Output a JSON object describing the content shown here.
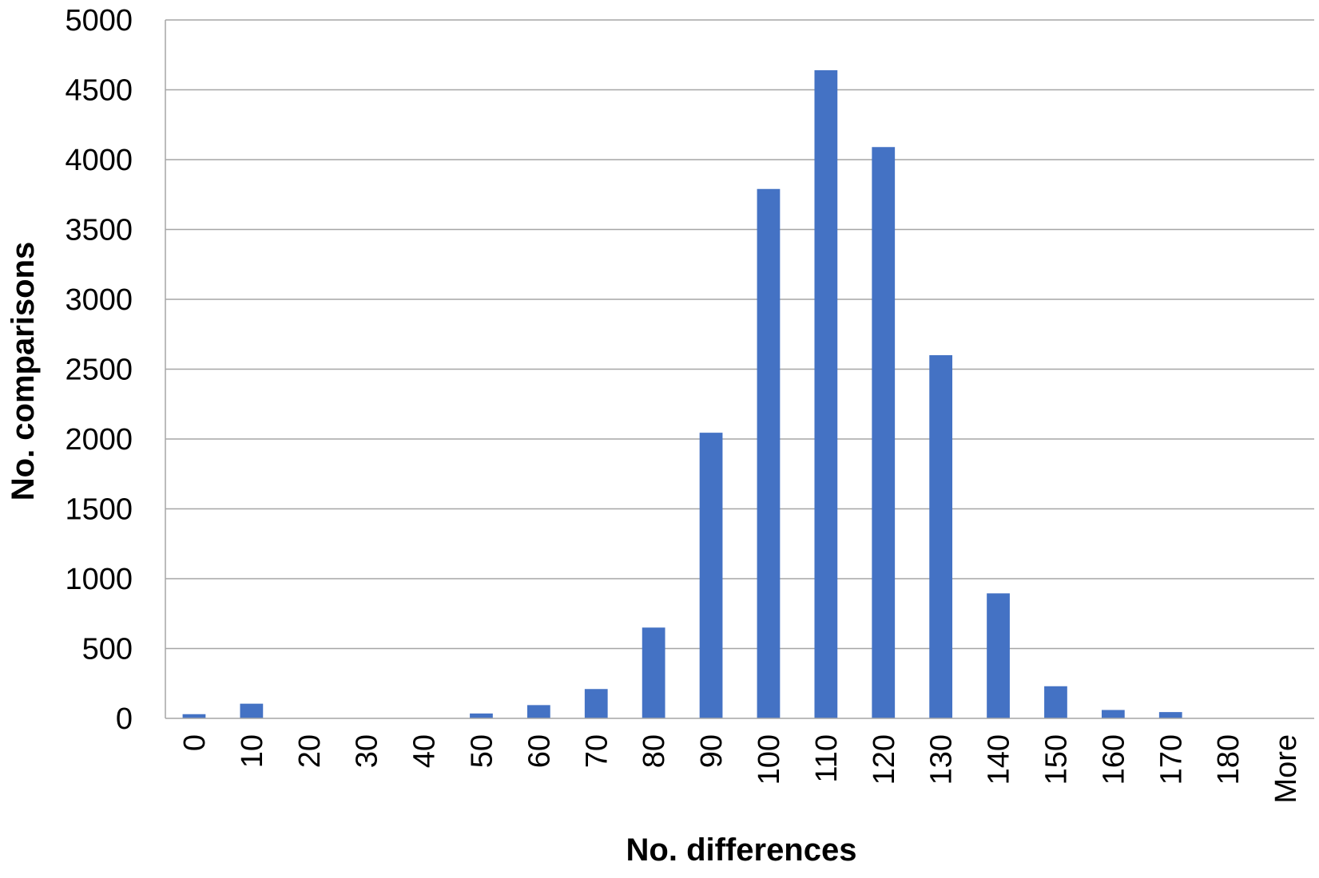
{
  "chart_data": {
    "type": "bar",
    "title": "",
    "xlabel": "No. differences",
    "ylabel": "No. comparisons",
    "categories": [
      "0",
      "10",
      "20",
      "30",
      "40",
      "50",
      "60",
      "70",
      "80",
      "90",
      "100",
      "110",
      "120",
      "130",
      "140",
      "150",
      "160",
      "170",
      "180",
      "More"
    ],
    "values": [
      30,
      105,
      0,
      0,
      0,
      35,
      95,
      210,
      650,
      2045,
      3790,
      4640,
      4090,
      2600,
      895,
      230,
      60,
      45,
      0,
      0
    ],
    "ylim": [
      0,
      5000
    ],
    "yticks": [
      0,
      500,
      1000,
      1500,
      2000,
      2500,
      3000,
      3500,
      4000,
      4500,
      5000
    ],
    "grid": true,
    "bar_color": "#4472C4",
    "grid_color": "#A6A6A6"
  }
}
